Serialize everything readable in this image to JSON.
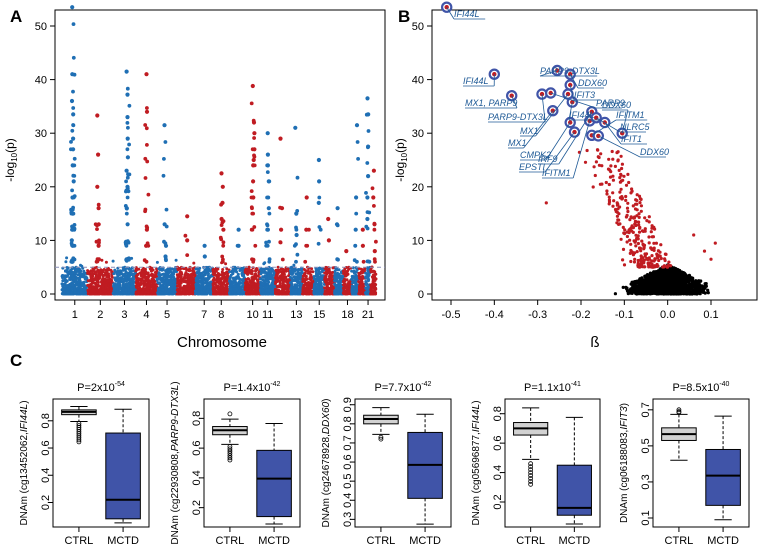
{
  "panel_letters": {
    "a": "A",
    "b": "B",
    "c": "C"
  },
  "colors": {
    "blue": "#1f6fb4",
    "red": "#c01c22",
    "black": "#000000",
    "box_ctrl": "#d2d2d2",
    "box_mctd": "#4054a8",
    "label_text": "#1f5a96",
    "threshold": "#8a8fb8"
  },
  "chart_data": [
    {
      "id": "manhattan",
      "type": "scatter",
      "title": "",
      "xlabel": "Chromosome",
      "ylabel": "-log10(p)",
      "ylim": [
        0,
        55
      ],
      "yticks": [
        0,
        10,
        20,
        30,
        40,
        50
      ],
      "xtick_labels": [
        "1",
        "2",
        "3",
        "4",
        "5",
        "7",
        "8",
        "10",
        "11",
        "13",
        "15",
        "18",
        "21"
      ],
      "threshold_y": 5,
      "grid": false,
      "chromosomes": [
        {
          "chr": "1",
          "color": "blue",
          "peaks": [
            53.5,
            41,
            36,
            33.5,
            29,
            27,
            24,
            21,
            18,
            15,
            12,
            10
          ]
        },
        {
          "chr": "2",
          "color": "red",
          "peaks": [
            33.3,
            26,
            20,
            16,
            13,
            9
          ]
        },
        {
          "chr": "3",
          "color": "blue",
          "peaks": [
            41.5,
            37.2,
            33,
            29,
            25.5,
            23,
            20,
            16,
            13
          ]
        },
        {
          "chr": "4",
          "color": "red",
          "peaks": [
            41,
            34,
            12,
            9
          ]
        },
        {
          "chr": "5",
          "color": "blue",
          "peaks": [
            31.5,
            13,
            9,
            7
          ]
        },
        {
          "chr": "6",
          "color": "red",
          "peaks": [
            14.5,
            10
          ]
        },
        {
          "chr": "7",
          "color": "blue",
          "peaks": [
            9,
            7
          ]
        },
        {
          "chr": "8",
          "color": "red",
          "peaks": [
            22.5,
            20,
            17,
            14,
            12
          ]
        },
        {
          "chr": "9",
          "color": "blue",
          "peaks": [
            12,
            9
          ]
        },
        {
          "chr": "10",
          "color": "red",
          "peaks": [
            38.8,
            32,
            30,
            27,
            25,
            24,
            21,
            18
          ]
        },
        {
          "chr": "11",
          "color": "blue",
          "peaks": [
            30,
            26,
            24,
            21,
            16,
            12
          ]
        },
        {
          "chr": "12",
          "color": "red",
          "peaks": [
            29,
            16,
            12
          ]
        },
        {
          "chr": "13",
          "color": "blue",
          "peaks": [
            31,
            15,
            11
          ]
        },
        {
          "chr": "14",
          "color": "red",
          "peaks": [
            18,
            12
          ]
        },
        {
          "chr": "15",
          "color": "blue",
          "peaks": [
            25,
            21,
            17
          ]
        },
        {
          "chr": "16",
          "color": "red",
          "peaks": [
            14,
            10
          ]
        },
        {
          "chr": "17",
          "color": "blue",
          "peaks": [
            16,
            13
          ]
        },
        {
          "chr": "18",
          "color": "red",
          "peaks": [
            8
          ]
        },
        {
          "chr": "19",
          "color": "blue",
          "peaks": [
            31.5,
            18,
            12
          ]
        },
        {
          "chr": "20",
          "color": "red",
          "peaks": [
            12,
            9
          ]
        },
        {
          "chr": "21",
          "color": "blue",
          "peaks": [
            36.5,
            33.5,
            27.5,
            22,
            18,
            14
          ]
        },
        {
          "chr": "22",
          "color": "red",
          "peaks": [
            23,
            18,
            13,
            8
          ]
        }
      ]
    },
    {
      "id": "volcano",
      "type": "scatter",
      "title": "",
      "xlabel": "ß",
      "ylabel": "-log10(p)",
      "xlim": [
        -0.55,
        0.17
      ],
      "ylim": [
        0,
        55
      ],
      "xticks": [
        -0.5,
        -0.4,
        -0.3,
        -0.2,
        -0.1,
        0.0,
        0.1
      ],
      "xtick_labels": [
        "-0.5",
        "-0.4",
        "-0.3",
        "-0.2",
        "-0.1",
        "0.0",
        "0.1"
      ],
      "yticks": [
        0,
        10,
        20,
        30,
        40,
        50
      ],
      "grid": false,
      "labeled_points": [
        {
          "label": "IFI44L",
          "beta": -0.51,
          "p": 53.5
        },
        {
          "label": "IFI44L",
          "beta": -0.4,
          "p": 41
        },
        {
          "label": "MX1, PARP9",
          "beta": -0.36,
          "p": 37
        },
        {
          "label": "PARP9-DTX3L",
          "beta": -0.29,
          "p": 37.3
        },
        {
          "label": "PARP9-DTX3L",
          "beta": -0.255,
          "p": 41.7
        },
        {
          "label": "DDX60",
          "beta": -0.225,
          "p": 41
        },
        {
          "label": "IFIT3",
          "beta": -0.225,
          "p": 39
        },
        {
          "label": "PARP9",
          "beta": -0.27,
          "p": 37.5
        },
        {
          "label": "MX1",
          "beta": -0.23,
          "p": 37.3
        },
        {
          "label": "IFI44L",
          "beta": -0.22,
          "p": 35.8
        },
        {
          "label": "MX1",
          "beta": -0.265,
          "p": 34.2
        },
        {
          "label": "CMPK2",
          "beta": -0.225,
          "p": 32
        },
        {
          "label": "EPSTI",
          "beta": -0.215,
          "p": 30.2
        },
        {
          "label": "IRF9",
          "beta": -0.175,
          "p": 34
        },
        {
          "label": "IFITM1",
          "beta": -0.18,
          "p": 32.3
        },
        {
          "label": "IFITM1",
          "beta": -0.175,
          "p": 29.6
        },
        {
          "label": "NLRC5",
          "beta": -0.165,
          "p": 32.9
        },
        {
          "label": "IFIT1",
          "beta": -0.145,
          "p": 32
        },
        {
          "label": "DDX60",
          "beta": -0.16,
          "p": 29.5
        },
        {
          "label": "DDX60",
          "beta": -0.105,
          "p": 30
        }
      ]
    },
    {
      "id": "box1",
      "type": "box",
      "title": "P=2x10-54",
      "p_coef": "P=2x10",
      "p_exp": "-54",
      "ylabel_prefix": "DNAm (cg13452062,",
      "gene": "IFI44L",
      "ylabel_suffix": ")",
      "categories": [
        "CTRL",
        "MCTD"
      ],
      "ylim": [
        0.02,
        0.96
      ],
      "yticks": [
        0.2,
        0.4,
        0.6,
        0.8
      ],
      "ytick_labels": [
        "0.2",
        "0.4",
        "0.6",
        "0.8"
      ],
      "boxes": [
        {
          "q1": 0.845,
          "median": 0.865,
          "q3": 0.88,
          "whisker_low": 0.795,
          "whisker_high": 0.905,
          "outliers": [
            0.78,
            0.765,
            0.75,
            0.735,
            0.72,
            0.705,
            0.69,
            0.675,
            0.66,
            0.645
          ]
        },
        {
          "q1": 0.08,
          "median": 0.22,
          "q3": 0.71,
          "whisker_low": 0.05,
          "whisker_high": 0.885,
          "outliers": []
        }
      ]
    },
    {
      "id": "box2",
      "type": "box",
      "title": "P=1.4x10-42",
      "p_coef": "P=1.4x10",
      "p_exp": "-42",
      "ylabel_prefix": "DNAm (cg22930808,",
      "gene": "PARP9-DTX3L",
      "ylabel_suffix": ")",
      "categories": [
        "CTRL",
        "MCTD"
      ],
      "ylim": [
        0.07,
        0.93
      ],
      "yticks": [
        0.2,
        0.4,
        0.6,
        0.8
      ],
      "ytick_labels": [
        "0.2",
        "0.4",
        "0.6",
        "0.8"
      ],
      "boxes": [
        {
          "q1": 0.69,
          "median": 0.72,
          "q3": 0.745,
          "whisker_low": 0.625,
          "whisker_high": 0.795,
          "outliers": [
            0.83,
            0.61,
            0.595,
            0.58,
            0.565,
            0.55,
            0.535,
            0.52
          ]
        },
        {
          "q1": 0.14,
          "median": 0.395,
          "q3": 0.585,
          "whisker_low": 0.09,
          "whisker_high": 0.765,
          "outliers": []
        }
      ]
    },
    {
      "id": "box3",
      "type": "box",
      "title": "P=7.7x10-42",
      "p_coef": "P=7.7x10",
      "p_exp": "-42",
      "ylabel_prefix": "DNAm (cg24678928,",
      "gene": "DDX60",
      "ylabel_suffix": ")",
      "categories": [
        "CTRL",
        "MCTD"
      ],
      "ylim": [
        0.26,
        0.93
      ],
      "yticks": [
        0.3,
        0.4,
        0.5,
        0.6,
        0.7,
        0.8,
        0.9
      ],
      "ytick_labels": [
        "0.3",
        "0.4",
        "0.5",
        "0.6",
        "0.7",
        "0.8",
        "0.9"
      ],
      "boxes": [
        {
          "q1": 0.8,
          "median": 0.825,
          "q3": 0.845,
          "whisker_low": 0.745,
          "whisker_high": 0.885,
          "outliers": [
            0.73,
            0.72
          ]
        },
        {
          "q1": 0.41,
          "median": 0.585,
          "q3": 0.755,
          "whisker_low": 0.275,
          "whisker_high": 0.85,
          "outliers": []
        }
      ]
    },
    {
      "id": "box4",
      "type": "box",
      "title": "P=1.1x10-41",
      "p_coef": "P=1.1x10",
      "p_exp": "-41",
      "ylabel_prefix": "DNAm (cg05696877,",
      "gene": "IFI44L",
      "ylabel_suffix": ")",
      "categories": [
        "CTRL",
        "MCTD"
      ],
      "ylim": [
        0.03,
        0.9
      ],
      "yticks": [
        0.2,
        0.4,
        0.6,
        0.8
      ],
      "ytick_labels": [
        "0.2",
        "0.4",
        "0.6",
        "0.8"
      ],
      "boxes": [
        {
          "q1": 0.655,
          "median": 0.7,
          "q3": 0.74,
          "whisker_low": 0.49,
          "whisker_high": 0.84,
          "outliers": [
            0.46,
            0.44,
            0.42,
            0.4,
            0.38,
            0.36,
            0.34,
            0.32
          ]
        },
        {
          "q1": 0.11,
          "median": 0.16,
          "q3": 0.45,
          "whisker_low": 0.05,
          "whisker_high": 0.775,
          "outliers": []
        }
      ]
    },
    {
      "id": "box5",
      "type": "box",
      "title": "P=8.5x10-40",
      "p_coef": "P=8.5x10",
      "p_exp": "-40",
      "ylabel_prefix": "DNAm (cg06188083,",
      "gene": "IFIT3",
      "ylabel_suffix": ")",
      "categories": [
        "CTRL",
        "MCTD"
      ],
      "ylim": [
        0.05,
        0.76
      ],
      "yticks": [
        0.1,
        0.3,
        0.5,
        0.7
      ],
      "ytick_labels": [
        "0.1",
        "0.3",
        "0.5",
        "0.7"
      ],
      "boxes": [
        {
          "q1": 0.53,
          "median": 0.565,
          "q3": 0.6,
          "whisker_low": 0.42,
          "whisker_high": 0.675,
          "outliers": [
            0.7,
            0.69,
            0.685
          ]
        },
        {
          "q1": 0.17,
          "median": 0.335,
          "q3": 0.48,
          "whisker_low": 0.09,
          "whisker_high": 0.665,
          "outliers": []
        }
      ]
    }
  ]
}
